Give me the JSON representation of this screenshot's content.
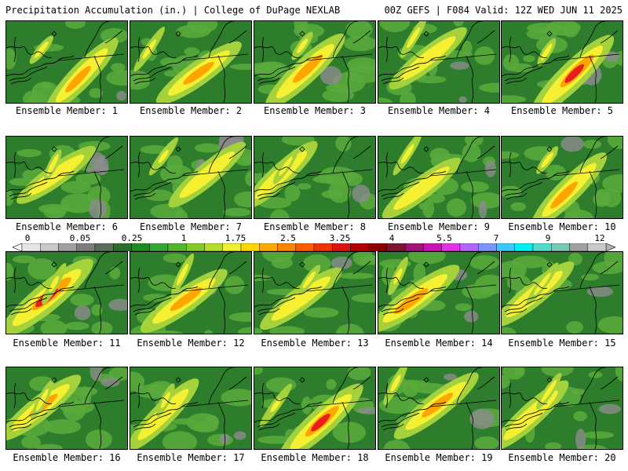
{
  "header": {
    "title": "Precipitation Accumulation (in.) | College of DuPage NEXLAB",
    "run": "00Z GEFS | F084 Valid: 12Z WED JUN 11 2025"
  },
  "caption_prefix": "Ensemble Member:",
  "members": [
    {
      "label": "Ensemble Member: 1"
    },
    {
      "label": "Ensemble Member: 2"
    },
    {
      "label": "Ensemble Member: 3"
    },
    {
      "label": "Ensemble Member: 4"
    },
    {
      "label": "Ensemble Member: 5"
    },
    {
      "label": "Ensemble Member: 6"
    },
    {
      "label": "Ensemble Member: 7"
    },
    {
      "label": "Ensemble Member: 8"
    },
    {
      "label": "Ensemble Member: 9"
    },
    {
      "label": "Ensemble Member: 10"
    },
    {
      "label": "Ensemble Member: 11"
    },
    {
      "label": "Ensemble Member: 12"
    },
    {
      "label": "Ensemble Member: 13"
    },
    {
      "label": "Ensemble Member: 14"
    },
    {
      "label": "Ensemble Member: 15"
    },
    {
      "label": "Ensemble Member: 16"
    },
    {
      "label": "Ensemble Member: 17"
    },
    {
      "label": "Ensemble Member: 18"
    },
    {
      "label": "Ensemble Member: 19"
    },
    {
      "label": "Ensemble Member: 20"
    }
  ],
  "colorbar": {
    "tick_labels": [
      "0",
      "0.05",
      "0.25",
      "1",
      "1.75",
      "2.5",
      "3.25",
      "4",
      "5.5",
      "7",
      "9",
      "12"
    ],
    "colors": [
      "#e6e6e6",
      "#c8c8c8",
      "#a0a0a0",
      "#7d7d7d",
      "#5a6e5a",
      "#2d6e2d",
      "#1e8c1e",
      "#37a537",
      "#55b42d",
      "#82c828",
      "#b4dc28",
      "#f0f032",
      "#ffd700",
      "#ffaa00",
      "#ff8200",
      "#ff5a00",
      "#f03200",
      "#dc1414",
      "#b40000",
      "#8c0000",
      "#7d1432",
      "#a01478",
      "#c814b4",
      "#e632e6",
      "#b464ff",
      "#7896ff",
      "#3cc8ff",
      "#00f0f0",
      "#50dcc8",
      "#78c8b4",
      "#a0a0a0",
      "#c8c8c8"
    ]
  },
  "colors": {
    "low": "#2d7d2d",
    "mid": "#5aaa3c",
    "light": "#a5d23c",
    "yellow": "#f5f032",
    "orange": "#ffa500",
    "red": "#e61e1e",
    "purple": "#b43cdc",
    "gray": "#8c8c8c",
    "border": "#000000"
  }
}
